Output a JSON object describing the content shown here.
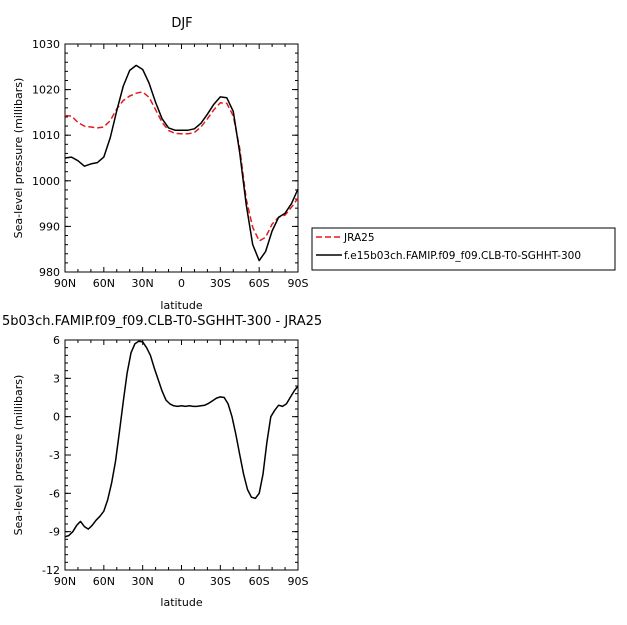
{
  "chart_data": [
    {
      "type": "line",
      "title": "DJF",
      "xlabel": "latitude",
      "ylabel": "Sea-level pressure (millibars)",
      "xlim": [
        -90,
        90
      ],
      "ylim": [
        980,
        1030
      ],
      "x_ticks": [
        -90,
        -60,
        -30,
        0,
        30,
        60,
        90
      ],
      "x_tick_labels": [
        "90N",
        "60N",
        "30N",
        "0",
        "30S",
        "60S",
        "90S"
      ],
      "y_ticks": [
        980,
        990,
        1000,
        1010,
        1020,
        1030
      ],
      "y_tick_labels": [
        "980",
        "990",
        "1000",
        "1010",
        "1020",
        "1030"
      ],
      "legend": "outside-right",
      "series": [
        {
          "name": "JRA25",
          "color": "#e41a1c",
          "dash": "dashed",
          "x": [
            -90,
            -85,
            -80,
            -75,
            -70,
            -65,
            -60,
            -55,
            -50,
            -45,
            -40,
            -35,
            -30,
            -25,
            -20,
            -15,
            -10,
            -5,
            0,
            5,
            10,
            15,
            20,
            25,
            30,
            35,
            40,
            45,
            50,
            55,
            60,
            65,
            70,
            75,
            80,
            85,
            90
          ],
          "values": [
            1014.3,
            1014.2,
            1012.8,
            1012.0,
            1011.8,
            1011.6,
            1011.8,
            1013.2,
            1015.8,
            1017.6,
            1018.6,
            1019.2,
            1019.5,
            1018.3,
            1015.6,
            1012.8,
            1011.0,
            1010.4,
            1010.3,
            1010.3,
            1010.6,
            1011.8,
            1013.6,
            1015.6,
            1017.1,
            1017.0,
            1014.2,
            1007.0,
            996.0,
            989.8,
            986.8,
            987.6,
            990.5,
            992.0,
            992.5,
            994.2,
            996.2
          ]
        },
        {
          "name": "f.e15b03ch.FAMIP.f09_f09.CLB-T0-SGHHT-300",
          "color": "#000000",
          "dash": "solid",
          "x": [
            -90,
            -85,
            -80,
            -75,
            -70,
            -65,
            -60,
            -55,
            -50,
            -45,
            -40,
            -35,
            -30,
            -25,
            -20,
            -15,
            -10,
            -5,
            0,
            5,
            10,
            15,
            20,
            25,
            30,
            35,
            40,
            45,
            50,
            55,
            60,
            65,
            70,
            75,
            80,
            85,
            90
          ],
          "values": [
            1005.0,
            1005.2,
            1004.4,
            1003.2,
            1003.7,
            1004.0,
            1005.2,
            1009.5,
            1015.4,
            1020.8,
            1024.2,
            1025.3,
            1024.4,
            1021.4,
            1017.2,
            1013.6,
            1011.6,
            1011.1,
            1011.1,
            1011.1,
            1011.4,
            1012.6,
            1014.6,
            1016.8,
            1018.4,
            1018.2,
            1015.2,
            1006.0,
            994.8,
            986.0,
            982.5,
            984.5,
            989.0,
            992.0,
            992.9,
            995.0,
            998.2
          ]
        }
      ]
    },
    {
      "type": "line",
      "title": "5b03ch.FAMIP.f09_f09.CLB-T0-SGHHT-300 - JRA25",
      "xlabel": "latitude",
      "ylabel": "Sea-level pressure (millibars)",
      "xlim": [
        -90,
        90
      ],
      "ylim": [
        -12,
        6
      ],
      "x_ticks": [
        -90,
        -60,
        -30,
        0,
        30,
        60,
        90
      ],
      "x_tick_labels": [
        "90N",
        "60N",
        "30N",
        "0",
        "30S",
        "60S",
        "90S"
      ],
      "y_ticks": [
        -12,
        -9,
        -6,
        -3,
        0,
        3,
        6
      ],
      "y_tick_labels": [
        "-12",
        "-9",
        "-6",
        "-3",
        "0",
        "3",
        "6"
      ],
      "series": [
        {
          "color": "#000000",
          "dash": "solid",
          "x": [
            -90,
            -87,
            -84,
            -81,
            -78,
            -75,
            -72,
            -69,
            -66,
            -63,
            -60,
            -57,
            -54,
            -51,
            -48,
            -45,
            -42,
            -39,
            -36,
            -33,
            -30,
            -27,
            -24,
            -21,
            -18,
            -15,
            -12,
            -9,
            -6,
            -3,
            0,
            3,
            6,
            9,
            12,
            15,
            18,
            21,
            24,
            27,
            30,
            33,
            36,
            39,
            42,
            45,
            48,
            51,
            54,
            57,
            60,
            63,
            66,
            69,
            72,
            75,
            78,
            81,
            84,
            87,
            90
          ],
          "values": [
            -9.4,
            -9.3,
            -9.0,
            -8.5,
            -8.2,
            -8.6,
            -8.8,
            -8.5,
            -8.1,
            -7.8,
            -7.4,
            -6.5,
            -5.2,
            -3.5,
            -1.2,
            1.2,
            3.4,
            5.0,
            5.7,
            5.9,
            5.85,
            5.4,
            4.8,
            3.8,
            2.9,
            2.0,
            1.3,
            1.0,
            0.85,
            0.8,
            0.85,
            0.8,
            0.85,
            0.8,
            0.8,
            0.85,
            0.9,
            1.05,
            1.25,
            1.45,
            1.55,
            1.5,
            1.0,
            0.0,
            -1.4,
            -3.0,
            -4.5,
            -5.7,
            -6.3,
            -6.4,
            -6.0,
            -4.5,
            -2.0,
            0.0,
            0.5,
            0.9,
            0.8,
            1.0,
            1.5,
            2.0,
            2.4
          ]
        }
      ]
    }
  ]
}
